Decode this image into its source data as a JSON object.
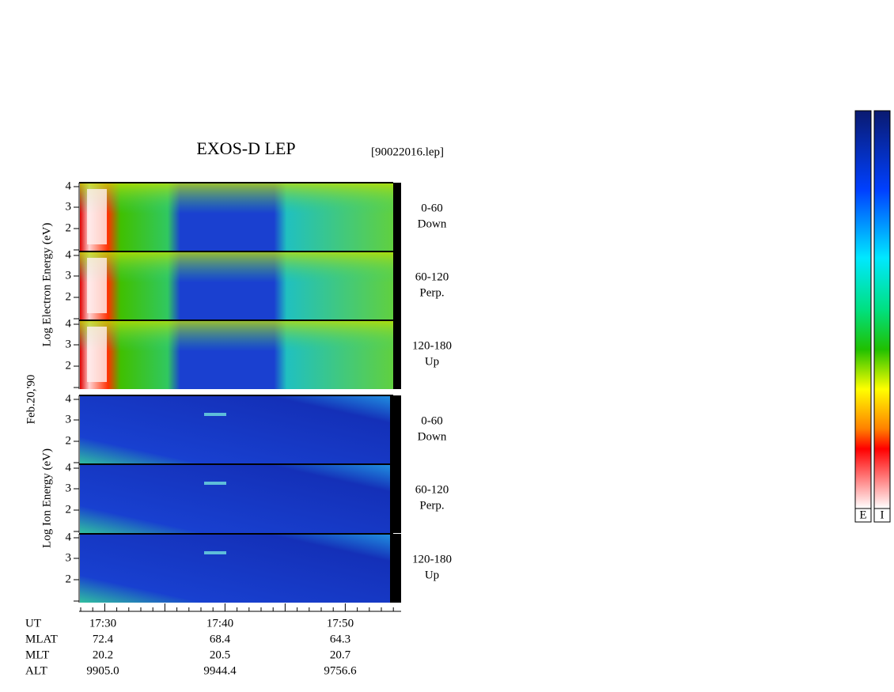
{
  "title": "EXOS-D LEP",
  "file": "[90022016.lep]",
  "date": "Feb.20,'90",
  "groups": [
    {
      "axis_label": "Log Electron Energy (eV)",
      "panels": [
        {
          "label": "0-60",
          "sublabel": "Down",
          "yticks": [
            "4",
            "3",
            "2"
          ]
        },
        {
          "label": "60-120",
          "sublabel": "Perp.",
          "yticks": [
            "4",
            "3",
            "2"
          ]
        },
        {
          "label": "120-180",
          "sublabel": "Up",
          "yticks": [
            "4",
            "3",
            "2"
          ]
        }
      ]
    },
    {
      "axis_label": "Log Ion Energy (eV)",
      "panels": [
        {
          "label": "0-60",
          "sublabel": "Down",
          "yticks": [
            "4",
            "3",
            "2"
          ]
        },
        {
          "label": "60-120",
          "sublabel": "Perp.",
          "yticks": [
            "4",
            "3",
            "2"
          ]
        },
        {
          "label": "120-180",
          "sublabel": "Up",
          "yticks": [
            "4",
            "3",
            "2"
          ]
        }
      ]
    }
  ],
  "footer": {
    "rows": [
      {
        "label": "UT",
        "values": [
          "17:30",
          "17:40",
          "17:50"
        ]
      },
      {
        "label": "MLAT",
        "values": [
          "72.4",
          "68.4",
          "64.3"
        ]
      },
      {
        "label": "MLT",
        "values": [
          "20.2",
          "20.5",
          "20.7"
        ]
      },
      {
        "label": "ALT",
        "values": [
          "9905.0",
          "9944.4",
          "9756.6"
        ]
      }
    ]
  },
  "colorbars": [
    "E",
    "I"
  ]
}
